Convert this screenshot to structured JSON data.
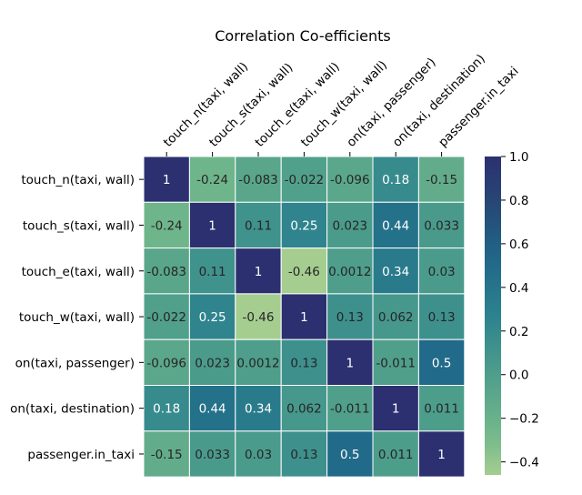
{
  "chart_data": {
    "type": "heatmap",
    "title": "Correlation Co-efficients",
    "labels": [
      "touch_n(taxi, wall)",
      "touch_s(taxi, wall)",
      "touch_e(taxi, wall)",
      "touch_w(taxi, wall)",
      "on(taxi, passenger)",
      "on(taxi, destination)",
      "passenger.in_taxi"
    ],
    "matrix": [
      [
        1,
        -0.24,
        -0.083,
        -0.022,
        -0.096,
        0.18,
        -0.15
      ],
      [
        -0.24,
        1,
        0.11,
        0.25,
        0.023,
        0.44,
        0.033
      ],
      [
        -0.083,
        0.11,
        1,
        -0.46,
        0.0012,
        0.34,
        0.03
      ],
      [
        -0.022,
        0.25,
        -0.46,
        1,
        0.13,
        0.062,
        0.13
      ],
      [
        -0.096,
        0.023,
        0.0012,
        0.13,
        1,
        -0.011,
        0.5
      ],
      [
        0.18,
        0.44,
        0.34,
        0.062,
        -0.011,
        1,
        0.011
      ],
      [
        -0.15,
        0.033,
        0.03,
        0.13,
        0.5,
        0.011,
        1
      ]
    ],
    "cell_labels": [
      [
        "1",
        "-0.24",
        "-0.083",
        "-0.022",
        "-0.096",
        "0.18",
        "-0.15"
      ],
      [
        "-0.24",
        "1",
        "0.11",
        "0.25",
        "0.023",
        "0.44",
        "0.033"
      ],
      [
        "-0.083",
        "0.11",
        "1",
        "-0.46",
        "0.0012",
        "0.34",
        "0.03"
      ],
      [
        "-0.022",
        "0.25",
        "-0.46",
        "1",
        "0.13",
        "0.062",
        "0.13"
      ],
      [
        "-0.096",
        "0.023",
        "0.0012",
        "0.13",
        "1",
        "-0.011",
        "0.5"
      ],
      [
        "0.18",
        "0.44",
        "0.34",
        "0.062",
        "-0.011",
        "1",
        "0.011"
      ],
      [
        "-0.15",
        "0.033",
        "0.03",
        "0.13",
        "0.5",
        "0.011",
        "1"
      ]
    ],
    "colorbar": {
      "vmin": -0.46,
      "vmax": 1.0,
      "ticks": [
        1.0,
        0.8,
        0.6,
        0.4,
        0.2,
        0.0,
        -0.2,
        -0.4
      ],
      "tick_labels": [
        "1.0",
        "0.8",
        "0.6",
        "0.4",
        "0.2",
        "0.0",
        "−0.2",
        "−0.4"
      ]
    },
    "colormap": "crest",
    "grid": false,
    "x_tick_position": "top",
    "colors": {
      "low": "#a3d18d",
      "high": "#2c3172",
      "cell_border": "#ffffff"
    }
  }
}
